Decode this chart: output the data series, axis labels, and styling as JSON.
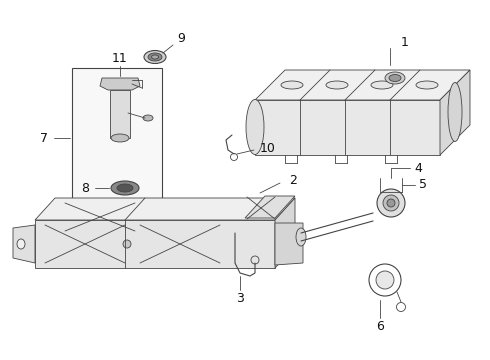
{
  "background_color": "#ffffff",
  "line_color": "#444444",
  "label_color": "#222222",
  "fig_width": 4.9,
  "fig_height": 3.6,
  "dpi": 100
}
